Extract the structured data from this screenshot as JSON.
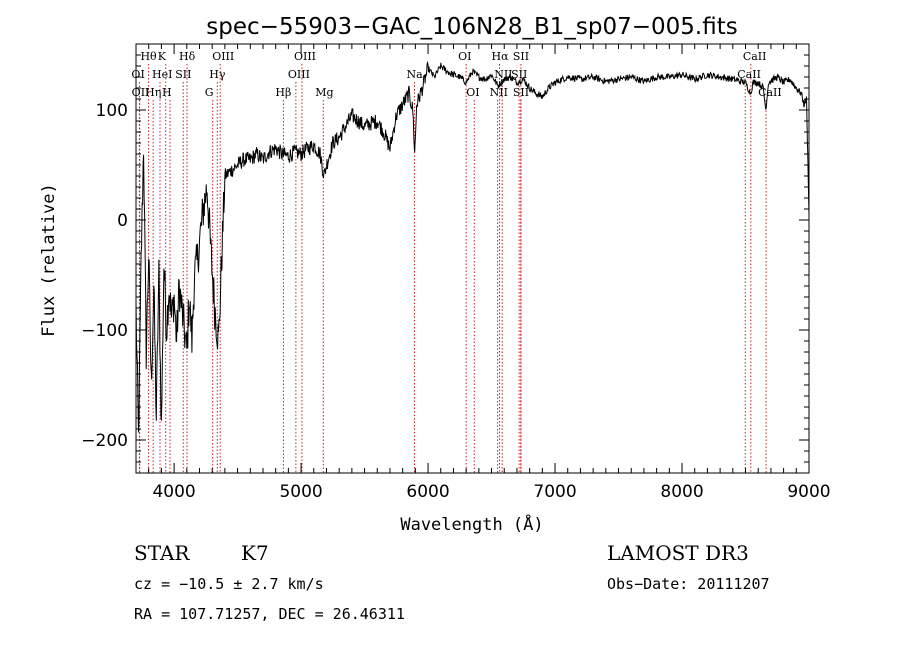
{
  "chart_data": {
    "type": "line",
    "title": "spec−55903−GAC_106N28_B1_sp07−005.fits",
    "xlabel": "Wavelength (Å)",
    "ylabel": "Flux (relative)",
    "xlim": [
      3700,
      9000
    ],
    "ylim": [
      -230,
      160
    ],
    "x_ticks": [
      {
        "value": 4000,
        "label": "4000"
      },
      {
        "value": 5000,
        "label": "5000"
      },
      {
        "value": 6000,
        "label": "6000"
      },
      {
        "value": 7000,
        "label": "7000"
      },
      {
        "value": 8000,
        "label": "8000"
      },
      {
        "value": 9000,
        "label": "9000"
      }
    ],
    "y_ticks": [
      {
        "value": 100,
        "label": "100"
      },
      {
        "value": 0,
        "label": "0"
      },
      {
        "value": -100,
        "label": "−100"
      },
      {
        "value": -200,
        "label": "−200"
      }
    ],
    "series": [
      {
        "name": "flux",
        "anchors": [
          [
            3700,
            -80
          ],
          [
            3720,
            -200
          ],
          [
            3740,
            -40
          ],
          [
            3760,
            70
          ],
          [
            3780,
            -120
          ],
          [
            3800,
            -30
          ],
          [
            3820,
            -150
          ],
          [
            3840,
            -60
          ],
          [
            3860,
            -180
          ],
          [
            3880,
            -50
          ],
          [
            3900,
            -190
          ],
          [
            3920,
            -40
          ],
          [
            3940,
            -100
          ],
          [
            3960,
            -60
          ],
          [
            3980,
            -90
          ],
          [
            4000,
            -70
          ],
          [
            4020,
            -110
          ],
          [
            4040,
            -60
          ],
          [
            4060,
            -80
          ],
          [
            4080,
            -100
          ],
          [
            4100,
            -120
          ],
          [
            4120,
            -70
          ],
          [
            4140,
            -110
          ],
          [
            4160,
            -50
          ],
          [
            4180,
            -40
          ],
          [
            4200,
            -20
          ],
          [
            4230,
            10
          ],
          [
            4260,
            30
          ],
          [
            4290,
            -30
          ],
          [
            4320,
            -80
          ],
          [
            4350,
            -110
          ],
          [
            4370,
            -50
          ],
          [
            4400,
            40
          ],
          [
            4450,
            45
          ],
          [
            4500,
            50
          ],
          [
            4550,
            55
          ],
          [
            4600,
            55
          ],
          [
            4650,
            60
          ],
          [
            4700,
            55
          ],
          [
            4750,
            62
          ],
          [
            4800,
            65
          ],
          [
            4850,
            60
          ],
          [
            4900,
            58
          ],
          [
            4950,
            62
          ],
          [
            5000,
            60
          ],
          [
            5050,
            65
          ],
          [
            5100,
            68
          ],
          [
            5150,
            60
          ],
          [
            5180,
            40
          ],
          [
            5200,
            50
          ],
          [
            5250,
            70
          ],
          [
            5300,
            75
          ],
          [
            5350,
            85
          ],
          [
            5400,
            95
          ],
          [
            5450,
            90
          ],
          [
            5500,
            85
          ],
          [
            5550,
            88
          ],
          [
            5600,
            90
          ],
          [
            5650,
            80
          ],
          [
            5700,
            65
          ],
          [
            5750,
            95
          ],
          [
            5800,
            105
          ],
          [
            5850,
            115
          ],
          [
            5880,
            100
          ],
          [
            5895,
            60
          ],
          [
            5910,
            105
          ],
          [
            5950,
            118
          ],
          [
            6000,
            138
          ],
          [
            6050,
            130
          ],
          [
            6100,
            140
          ],
          [
            6150,
            135
          ],
          [
            6200,
            132
          ],
          [
            6250,
            130
          ],
          [
            6300,
            125
          ],
          [
            6350,
            135
          ],
          [
            6400,
            130
          ],
          [
            6450,
            128
          ],
          [
            6500,
            132
          ],
          [
            6550,
            122
          ],
          [
            6600,
            128
          ],
          [
            6650,
            130
          ],
          [
            6700,
            125
          ],
          [
            6750,
            128
          ],
          [
            6800,
            120
          ],
          [
            6850,
            115
          ],
          [
            6900,
            112
          ],
          [
            6950,
            120
          ],
          [
            7000,
            125
          ],
          [
            7100,
            130
          ],
          [
            7200,
            128
          ],
          [
            7300,
            130
          ],
          [
            7400,
            126
          ],
          [
            7500,
            128
          ],
          [
            7600,
            130
          ],
          [
            7700,
            126
          ],
          [
            7800,
            130
          ],
          [
            7900,
            130
          ],
          [
            8000,
            132
          ],
          [
            8100,
            128
          ],
          [
            8200,
            132
          ],
          [
            8300,
            130
          ],
          [
            8400,
            128
          ],
          [
            8500,
            125
          ],
          [
            8540,
            115
          ],
          [
            8560,
            125
          ],
          [
            8600,
            125
          ],
          [
            8640,
            120
          ],
          [
            8660,
            100
          ],
          [
            8680,
            125
          ],
          [
            8750,
            130
          ],
          [
            8800,
            125
          ],
          [
            8850,
            128
          ],
          [
            8900,
            120
          ],
          [
            8940,
            115
          ],
          [
            8960,
            105
          ],
          [
            8980,
            110
          ],
          [
            8990,
            60
          ],
          [
            9000,
            5
          ]
        ]
      }
    ],
    "spectral_lines": [
      {
        "label": "Hθ",
        "wl": 3798,
        "row": 0
      },
      {
        "label": "K",
        "wl": 3934,
        "row": 0
      },
      {
        "label": "Hδ",
        "wl": 4102,
        "row": 0
      },
      {
        "label": "OIII",
        "wl": 4363,
        "row": 0
      },
      {
        "label": "OIII",
        "wl": 5007,
        "row": 0
      },
      {
        "label": "OI",
        "wl": 6300,
        "row": 0
      },
      {
        "label": "Hα",
        "wl": 6563,
        "row": 0
      },
      {
        "label": "SII",
        "wl": 6731,
        "row": 0
      },
      {
        "label": "CaII",
        "wl": 8542,
        "row": 0
      },
      {
        "label": "OI",
        "wl": 3727,
        "row": 1
      },
      {
        "label": "HeI",
        "wl": 3889,
        "row": 1
      },
      {
        "label": "SII",
        "wl": 4072,
        "row": 1
      },
      {
        "label": "Hγ",
        "wl": 4340,
        "row": 1
      },
      {
        "label": "OIII",
        "wl": 4959,
        "row": 1
      },
      {
        "label": "Na",
        "wl": 5893,
        "row": 1
      },
      {
        "label": "NII",
        "wl": 6584,
        "row": 1
      },
      {
        "label": "SII",
        "wl": 6717,
        "row": 1
      },
      {
        "label": "CaII",
        "wl": 8498,
        "row": 1
      },
      {
        "label": "OII",
        "wl": 3729,
        "row": 2
      },
      {
        "label": "Hη",
        "wl": 3835,
        "row": 2
      },
      {
        "label": "H",
        "wl": 3968,
        "row": 2
      },
      {
        "label": "G",
        "wl": 4304,
        "row": 2
      },
      {
        "label": "Hβ",
        "wl": 4861,
        "row": 2
      },
      {
        "label": "Mg",
        "wl": 5175,
        "row": 2
      },
      {
        "label": "OI",
        "wl": 6364,
        "row": 2
      },
      {
        "label": "NII",
        "wl": 6548,
        "row": 2
      },
      {
        "label": "SII",
        "wl": 6731,
        "row": 2
      },
      {
        "label": "CaII",
        "wl": 8662,
        "row": 2
      }
    ],
    "line_color": "#000000",
    "marker_color": "#cc2222"
  },
  "info": {
    "object_class": "STAR",
    "subclass": "K7",
    "survey": "LAMOST DR3",
    "redshift_text": "cz = −10.5 ± 2.7 km/s",
    "obs_date_text": "Obs−Date: 20111207",
    "coords_text": "RA = 107.71257, DEC =  26.46311"
  }
}
